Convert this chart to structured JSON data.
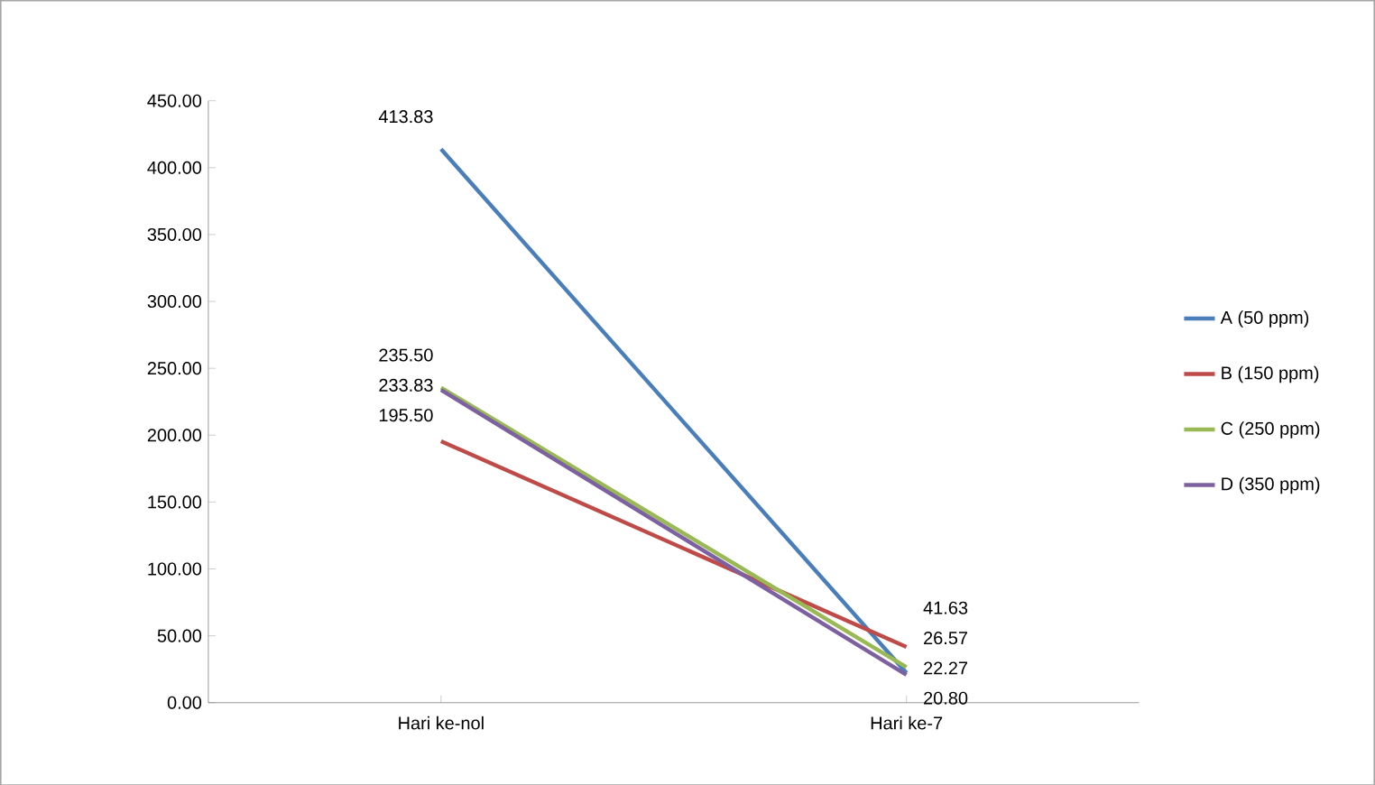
{
  "chart_data": {
    "type": "line",
    "categories": [
      "Hari ke-nol",
      "Hari ke-7"
    ],
    "series": [
      {
        "name": "A (50 ppm)",
        "color": "#4a7ebb",
        "values": [
          413.83,
          22.27
        ],
        "value_labels": [
          "413.83",
          "22.27"
        ]
      },
      {
        "name": "B (150 ppm)",
        "color": "#be4b48",
        "values": [
          195.5,
          41.63
        ],
        "value_labels": [
          "195.50",
          "41.63"
        ]
      },
      {
        "name": "C (250 ppm)",
        "color": "#98b954",
        "values": [
          235.5,
          26.57
        ],
        "value_labels": [
          "235.50",
          "26.57"
        ]
      },
      {
        "name": "D (350 ppm)",
        "color": "#7d60a0",
        "values": [
          233.83,
          20.8
        ],
        "value_labels": [
          "233.83",
          "20.80"
        ]
      }
    ],
    "ylim": [
      0,
      450
    ],
    "yticks": [
      {
        "value": 0,
        "label": "0.00"
      },
      {
        "value": 50,
        "label": "50.00"
      },
      {
        "value": 100,
        "label": "100.00"
      },
      {
        "value": 150,
        "label": "150.00"
      },
      {
        "value": 200,
        "label": "200.00"
      },
      {
        "value": 250,
        "label": "250.00"
      },
      {
        "value": 300,
        "label": "300.00"
      },
      {
        "value": 350,
        "label": "350.00"
      },
      {
        "value": 400,
        "label": "400.00"
      },
      {
        "value": 450,
        "label": "450.00"
      }
    ],
    "grid": false,
    "legend": "right",
    "marker": "none",
    "line_style": "solid"
  }
}
